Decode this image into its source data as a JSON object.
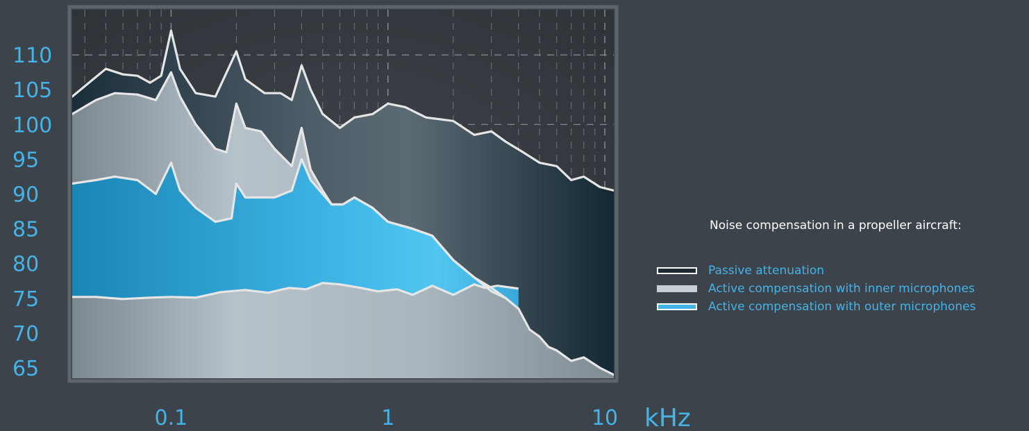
{
  "chart_data": {
    "type": "area",
    "title": "",
    "xlabel": "kHz",
    "ylabel": "",
    "x_scale": "log",
    "xlim": [
      0.035,
      11
    ],
    "ylim": [
      63.5,
      116.5
    ],
    "x_ticks": [
      {
        "value": 0.1,
        "label": "0.1"
      },
      {
        "value": 1,
        "label": "1"
      },
      {
        "value": 10,
        "label": "10"
      }
    ],
    "y_ticks": [
      110,
      105,
      100,
      95,
      90,
      85,
      80,
      75,
      70,
      65
    ],
    "legend_title": "Noise compensation in a propeller aircraft:",
    "legend_position": "right",
    "grid": true,
    "series": [
      {
        "name": "Passive attenuation",
        "color": "#15303f",
        "points": [
          [
            0.035,
            104.0
          ],
          [
            0.04,
            105.5
          ],
          [
            0.05,
            108.0
          ],
          [
            0.06,
            107.2
          ],
          [
            0.07,
            107.0
          ],
          [
            0.08,
            106.0
          ],
          [
            0.09,
            107.0
          ],
          [
            0.1,
            113.5
          ],
          [
            0.11,
            108.0
          ],
          [
            0.13,
            104.5
          ],
          [
            0.16,
            104.0
          ],
          [
            0.2,
            110.5
          ],
          [
            0.22,
            106.5
          ],
          [
            0.27,
            104.5
          ],
          [
            0.32,
            104.5
          ],
          [
            0.36,
            103.5
          ],
          [
            0.4,
            108.5
          ],
          [
            0.44,
            105.0
          ],
          [
            0.5,
            101.5
          ],
          [
            0.6,
            99.5
          ],
          [
            0.7,
            101.0
          ],
          [
            0.85,
            101.5
          ],
          [
            1.0,
            103.0
          ],
          [
            1.2,
            102.5
          ],
          [
            1.5,
            101.0
          ],
          [
            2.0,
            100.5
          ],
          [
            2.5,
            98.5
          ],
          [
            3.0,
            99.0
          ],
          [
            3.5,
            97.5
          ],
          [
            4.2,
            96.0
          ],
          [
            5.0,
            94.5
          ],
          [
            6.0,
            94.0
          ],
          [
            7.0,
            92.0
          ],
          [
            8.0,
            92.5
          ],
          [
            9.5,
            91.0
          ],
          [
            11,
            90.5
          ]
        ]
      },
      {
        "name": "Active compensation with inner microphones",
        "color": "#bcc6cc",
        "points": [
          [
            0.035,
            101.5
          ],
          [
            0.045,
            103.5
          ],
          [
            0.055,
            104.5
          ],
          [
            0.07,
            104.3
          ],
          [
            0.085,
            103.5
          ],
          [
            0.1,
            107.5
          ],
          [
            0.11,
            104.0
          ],
          [
            0.13,
            100.0
          ],
          [
            0.16,
            96.5
          ],
          [
            0.18,
            96.0
          ],
          [
            0.2,
            103.0
          ],
          [
            0.22,
            99.5
          ],
          [
            0.26,
            99.0
          ],
          [
            0.3,
            96.5
          ],
          [
            0.36,
            94.0
          ],
          [
            0.4,
            99.5
          ],
          [
            0.44,
            93.5
          ],
          [
            0.5,
            90.5
          ],
          [
            0.55,
            88.5
          ],
          [
            0.62,
            88.5
          ],
          [
            0.7,
            89.5
          ],
          [
            0.85,
            88.0
          ],
          [
            1.0,
            86.0
          ],
          [
            1.3,
            85.0
          ],
          [
            1.6,
            84.0
          ],
          [
            2.0,
            80.5
          ],
          [
            2.5,
            78.0
          ],
          [
            3.0,
            76.5
          ],
          [
            3.5,
            75.0
          ],
          [
            4.0,
            73.5
          ],
          [
            4.5,
            70.5
          ],
          [
            5.0,
            69.5
          ],
          [
            5.5,
            68.0
          ],
          [
            6.0,
            67.5
          ],
          [
            7.0,
            66.0
          ],
          [
            8.0,
            66.5
          ],
          [
            9.5,
            65.0
          ],
          [
            11,
            64.0
          ]
        ]
      },
      {
        "name": "Active compensation with outer microphones",
        "color": "#45b3e6",
        "points": [
          [
            0.035,
            91.5
          ],
          [
            0.045,
            92.0
          ],
          [
            0.055,
            92.5
          ],
          [
            0.07,
            92.0
          ],
          [
            0.085,
            90.0
          ],
          [
            0.1,
            94.5
          ],
          [
            0.11,
            90.5
          ],
          [
            0.13,
            88.0
          ],
          [
            0.16,
            86.0
          ],
          [
            0.19,
            86.5
          ],
          [
            0.2,
            91.5
          ],
          [
            0.22,
            89.5
          ],
          [
            0.26,
            89.5
          ],
          [
            0.3,
            89.5
          ],
          [
            0.36,
            90.5
          ],
          [
            0.4,
            95.0
          ],
          [
            0.44,
            92.0
          ],
          [
            0.5,
            90.0
          ],
          [
            0.55,
            88.5
          ],
          [
            0.62,
            88.5
          ],
          [
            0.7,
            89.5
          ],
          [
            0.85,
            88.0
          ],
          [
            1.0,
            86.0
          ],
          [
            1.3,
            85.0
          ],
          [
            1.6,
            84.0
          ],
          [
            2.0,
            80.5
          ],
          [
            2.5,
            78.0
          ],
          [
            3.0,
            76.0
          ],
          [
            3.5,
            75.0
          ],
          [
            4.0,
            73.5
          ]
        ]
      }
    ],
    "baseline": {
      "points": [
        [
          0.035,
          75.2
        ],
        [
          0.045,
          75.2
        ],
        [
          0.06,
          74.9
        ],
        [
          0.08,
          75.1
        ],
        [
          0.1,
          75.2
        ],
        [
          0.13,
          75.1
        ],
        [
          0.17,
          75.9
        ],
        [
          0.22,
          76.2
        ],
        [
          0.28,
          75.8
        ],
        [
          0.35,
          76.5
        ],
        [
          0.42,
          76.3
        ],
        [
          0.5,
          77.2
        ],
        [
          0.6,
          77.0
        ],
        [
          0.75,
          76.5
        ],
        [
          0.9,
          76.0
        ],
        [
          1.1,
          76.3
        ],
        [
          1.3,
          75.5
        ],
        [
          1.6,
          76.8
        ],
        [
          2.0,
          75.5
        ],
        [
          2.5,
          77.0
        ],
        [
          2.8,
          76.5
        ],
        [
          3.2,
          76.8
        ],
        [
          4.0,
          76.4
        ]
      ]
    }
  }
}
